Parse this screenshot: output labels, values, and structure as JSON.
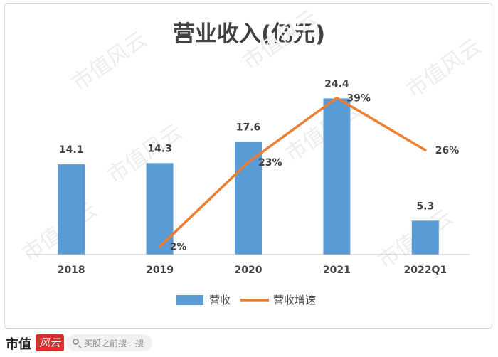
{
  "chart_data": {
    "type": "bar",
    "title": "营业收入(亿元)",
    "categories": [
      "2018",
      "2019",
      "2020",
      "2021",
      "2022Q1"
    ],
    "series": [
      {
        "name": "营收",
        "type": "bar",
        "values": [
          14.1,
          14.3,
          17.6,
          24.4,
          5.3
        ],
        "labels": [
          "14.1",
          "14.3",
          "17.6",
          "24.4",
          "5.3"
        ],
        "color": "#5b9bd5"
      },
      {
        "name": "营收增速",
        "type": "line",
        "values": [
          null,
          2,
          23,
          39,
          26
        ],
        "labels": [
          "",
          "2%",
          "23%",
          "39%",
          "26%"
        ],
        "unit": "%",
        "color": "#ed7d31"
      }
    ],
    "ylim": [
      0,
      27
    ],
    "y2lim": [
      0,
      43
    ],
    "grid": false,
    "legend_position": "bottom"
  },
  "watermark": "市值风云",
  "footer": {
    "brand": "市值",
    "search_placeholder": "买股之前搜一搜"
  }
}
